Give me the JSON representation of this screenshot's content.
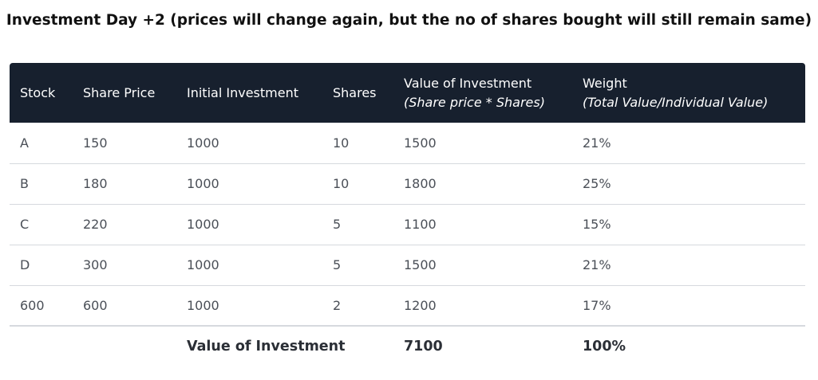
{
  "title": "Investment Day +2 (prices will change again, but the no of shares bought will still remain same)",
  "table": {
    "headers": [
      {
        "label": "Stock",
        "sub": ""
      },
      {
        "label": "Share Price",
        "sub": ""
      },
      {
        "label": "Initial Investment",
        "sub": ""
      },
      {
        "label": "Shares",
        "sub": ""
      },
      {
        "label": "Value of Investment",
        "sub": "(Share price * Shares)"
      },
      {
        "label": "Weight",
        "sub": "(Total Value/Individual Value)"
      }
    ],
    "rows": [
      [
        "A",
        "150",
        "1000",
        "10",
        "1500",
        "21%"
      ],
      [
        "B",
        "180",
        "1000",
        "10",
        "1800",
        "25%"
      ],
      [
        "C",
        "220",
        "1000",
        "5",
        "1100",
        "15%"
      ],
      [
        "D",
        "300",
        "1000",
        "5",
        "1500",
        "21%"
      ],
      [
        "600",
        "600",
        "1000",
        "2",
        "1200",
        "17%"
      ]
    ],
    "footer": {
      "label": "Value of Investment",
      "total_value": "7100",
      "total_weight": "100%"
    }
  },
  "colors": {
    "header_bg": "#17202e",
    "header_text": "#ffffff",
    "row_divider": "#d6d9de"
  }
}
